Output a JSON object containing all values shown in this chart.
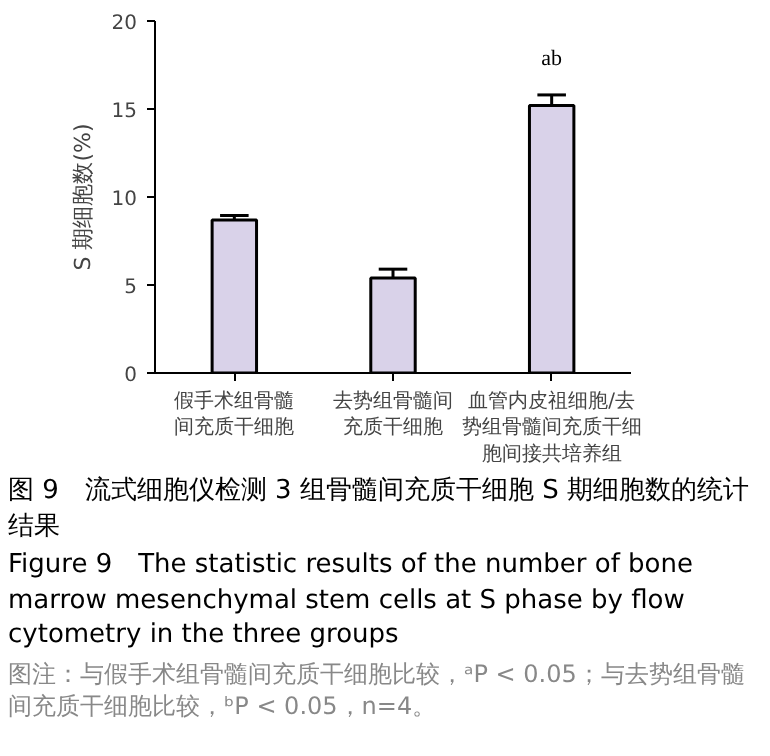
{
  "chart_data": {
    "type": "bar",
    "title": "图 9　流式细胞仪检测 3 组骨髓间充质干细胞 S 期细胞数的统计结果",
    "subtitle": "Figure 9　The statistic results of the number of bone marrow mesenchymal stem cells at S phase by flow cytometry in the three groups",
    "ylabel": "S 期细胞数(%)",
    "categories": [
      "假手术组骨髓间充质干细胞",
      "去势组骨髓间充质干细胞",
      "血管内皮祖细胞/去势组骨髓间充质干细胞间接共培养组"
    ],
    "values": [
      8.7,
      5.4,
      15.2
    ],
    "errors": [
      [
        8.7,
        8.95
      ],
      [
        5.4,
        5.9
      ],
      [
        15.2,
        15.8
      ]
    ],
    "color": "#d9d2e9",
    "ylim": [
      0,
      20
    ],
    "yticks": [
      0,
      5,
      10,
      15,
      20
    ],
    "grid": false,
    "annotations": [
      "ab",
      "图注：与假手术组骨髓间充质干细胞比较，ᵃP < 0.05；与去势组骨髓间充质干细胞比较，ᵇP < 0.05，n=4。"
    ]
  }
}
